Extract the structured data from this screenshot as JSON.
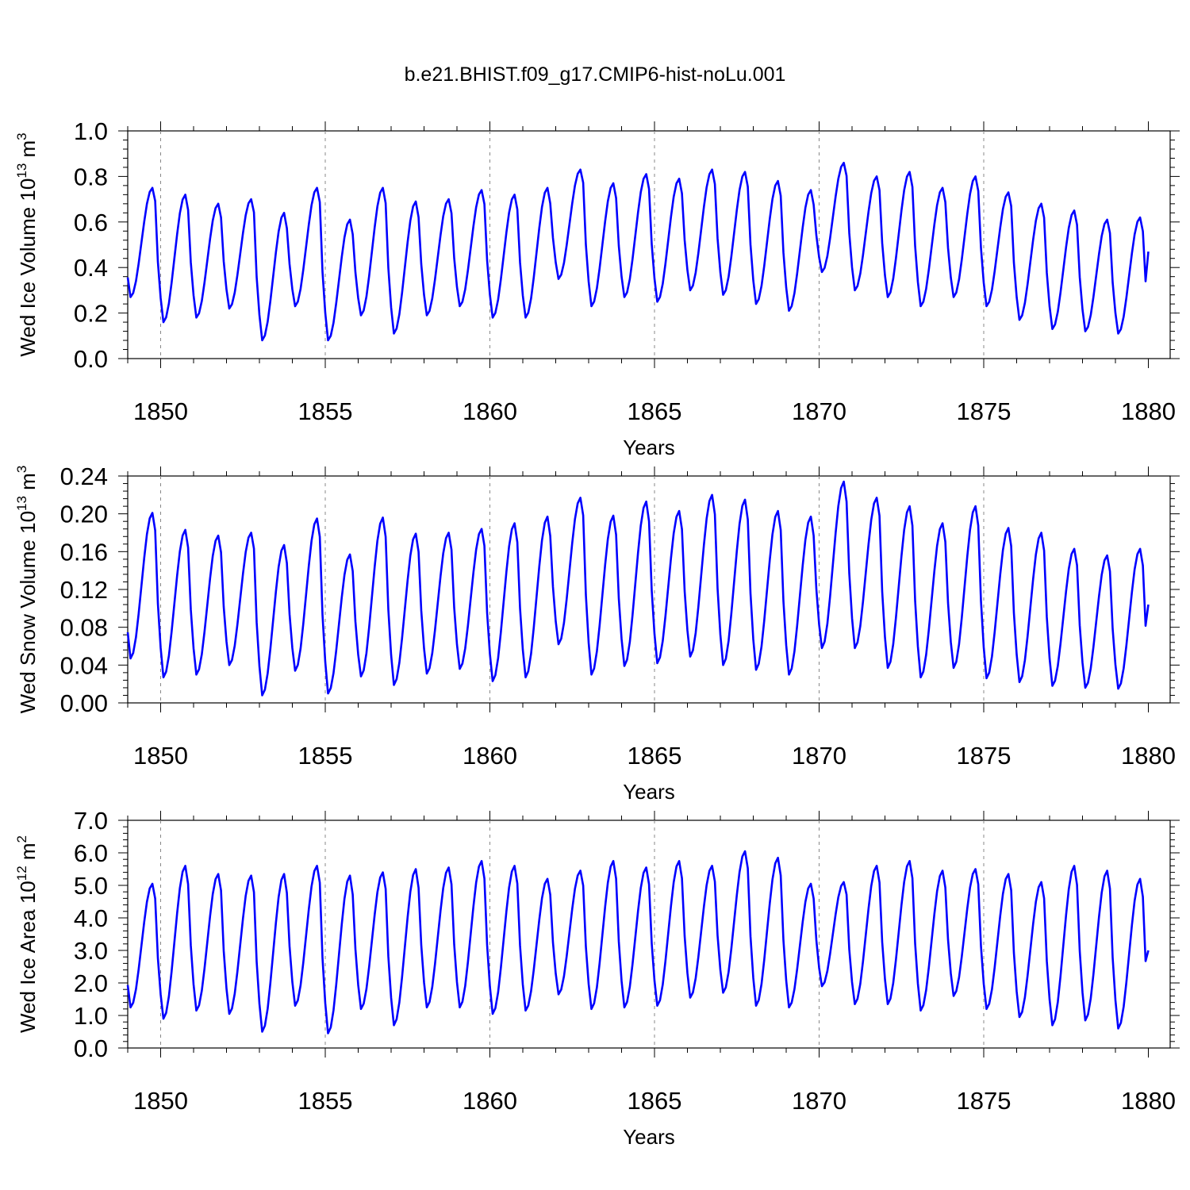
{
  "title": "b.e21.BHIST.f09_g17.CMIP6-hist-noLu.001",
  "colors": {
    "line": "#0000ff",
    "axis": "#000000",
    "grid": "#888888"
  },
  "chart_data": [
    {
      "type": "line",
      "ylabel": "Wed Ice Volume 10",
      "ylabel_exp": "13",
      "ylabel_unit": " m",
      "ylabel_unit_exp": "3",
      "xlabel": "Years",
      "xlim": [
        1849.0,
        1880.0
      ],
      "ylim": [
        0.0,
        1.0
      ],
      "yticks": [
        0.0,
        0.2,
        0.4,
        0.6,
        0.8,
        1.0
      ],
      "ytick_labels": [
        "0.0",
        "0.2",
        "0.4",
        "0.6",
        "0.8",
        "1.0"
      ],
      "xticks": [
        1850,
        1855,
        1860,
        1865,
        1870,
        1875,
        1880
      ],
      "xtick_labels": [
        "1850",
        "1855",
        "1860",
        "1865",
        "1870",
        "1875",
        "1880"
      ],
      "series": [
        {
          "name": "Wed Ice Volume",
          "start_year": 1849.0,
          "end_value": 0.47,
          "annual_min": [
            0.27,
            0.16,
            0.18,
            0.22,
            0.08,
            0.23,
            0.08,
            0.19,
            0.11,
            0.19,
            0.23,
            0.18,
            0.18,
            0.35,
            0.23,
            0.27,
            0.25,
            0.3,
            0.28,
            0.24,
            0.21,
            0.38,
            0.3,
            0.27,
            0.23,
            0.27,
            0.23,
            0.17,
            0.13,
            0.12,
            0.11
          ],
          "annual_max": [
            0.75,
            0.72,
            0.68,
            0.7,
            0.64,
            0.75,
            0.61,
            0.75,
            0.69,
            0.7,
            0.74,
            0.72,
            0.75,
            0.83,
            0.77,
            0.81,
            0.79,
            0.83,
            0.82,
            0.78,
            0.74,
            0.86,
            0.8,
            0.82,
            0.75,
            0.8,
            0.73,
            0.68,
            0.65,
            0.61,
            0.62
          ]
        }
      ]
    },
    {
      "type": "line",
      "ylabel": "Wed Snow Volume 10",
      "ylabel_exp": "13",
      "ylabel_unit": " m",
      "ylabel_unit_exp": "3",
      "xlabel": "Years",
      "xlim": [
        1849.0,
        1880.0
      ],
      "ylim": [
        0.0,
        0.24
      ],
      "yticks": [
        0.0,
        0.04,
        0.08,
        0.12,
        0.16,
        0.2,
        0.24
      ],
      "ytick_labels": [
        "0.00",
        "0.04",
        "0.08",
        "0.12",
        "0.16",
        "0.20",
        "0.24"
      ],
      "xticks": [
        1850,
        1855,
        1860,
        1865,
        1870,
        1875,
        1880
      ],
      "xtick_labels": [
        "1850",
        "1855",
        "1860",
        "1865",
        "1870",
        "1875",
        "1880"
      ],
      "series": [
        {
          "name": "Wed Snow Volume",
          "start_year": 1849.0,
          "end_value": 0.104,
          "annual_min": [
            0.047,
            0.027,
            0.03,
            0.04,
            0.008,
            0.034,
            0.01,
            0.028,
            0.019,
            0.031,
            0.036,
            0.023,
            0.027,
            0.062,
            0.03,
            0.039,
            0.042,
            0.049,
            0.04,
            0.035,
            0.03,
            0.058,
            0.058,
            0.037,
            0.027,
            0.037,
            0.026,
            0.022,
            0.018,
            0.016,
            0.015
          ],
          "annual_max": [
            0.201,
            0.183,
            0.177,
            0.18,
            0.167,
            0.195,
            0.157,
            0.196,
            0.179,
            0.18,
            0.184,
            0.19,
            0.197,
            0.217,
            0.198,
            0.213,
            0.203,
            0.22,
            0.215,
            0.203,
            0.197,
            0.234,
            0.217,
            0.208,
            0.19,
            0.208,
            0.185,
            0.18,
            0.163,
            0.156,
            0.163
          ]
        }
      ]
    },
    {
      "type": "line",
      "ylabel": "Wed Ice Area 10",
      "ylabel_exp": "12",
      "ylabel_unit": " m",
      "ylabel_unit_exp": "2",
      "xlabel": "Years",
      "xlim": [
        1849.0,
        1880.0
      ],
      "ylim": [
        0.0,
        7.0
      ],
      "yticks": [
        0.0,
        1.0,
        2.0,
        3.0,
        4.0,
        5.0,
        6.0,
        7.0
      ],
      "ytick_labels": [
        "0.0",
        "1.0",
        "2.0",
        "3.0",
        "4.0",
        "5.0",
        "6.0",
        "7.0"
      ],
      "xticks": [
        1850,
        1855,
        1860,
        1865,
        1870,
        1875,
        1880
      ],
      "xtick_labels": [
        "1850",
        "1855",
        "1860",
        "1865",
        "1870",
        "1875",
        "1880"
      ],
      "series": [
        {
          "name": "Wed Ice Area",
          "start_year": 1849.0,
          "end_value": 3.0,
          "annual_min": [
            1.25,
            0.9,
            1.15,
            1.05,
            0.5,
            1.3,
            0.45,
            1.2,
            0.7,
            1.25,
            1.25,
            1.05,
            1.15,
            1.65,
            1.2,
            1.25,
            1.3,
            1.55,
            1.7,
            1.3,
            1.25,
            1.9,
            1.35,
            1.35,
            1.15,
            1.6,
            1.2,
            0.95,
            0.7,
            0.85,
            0.6
          ],
          "annual_max": [
            5.05,
            5.6,
            5.35,
            5.3,
            5.35,
            5.6,
            5.3,
            5.4,
            5.5,
            5.55,
            5.75,
            5.6,
            5.2,
            5.45,
            5.75,
            5.55,
            5.75,
            5.6,
            6.05,
            5.85,
            5.05,
            5.1,
            5.6,
            5.75,
            5.45,
            5.5,
            5.35,
            5.1,
            5.6,
            5.45,
            5.2
          ]
        }
      ]
    }
  ]
}
